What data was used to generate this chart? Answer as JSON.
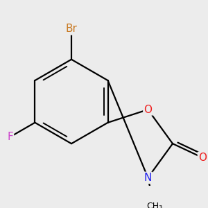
{
  "background_color": "#ececec",
  "bond_color": "#000000",
  "bond_width": 1.6,
  "atom_colors": {
    "Br": "#c87820",
    "F": "#cc44cc",
    "N": "#2020ee",
    "O": "#ee2020",
    "C": "#000000"
  },
  "figure_size": [
    3.0,
    3.0
  ],
  "dpi": 100,
  "xlim": [
    -2.2,
    2.5
  ],
  "ylim": [
    -2.0,
    2.2
  ]
}
